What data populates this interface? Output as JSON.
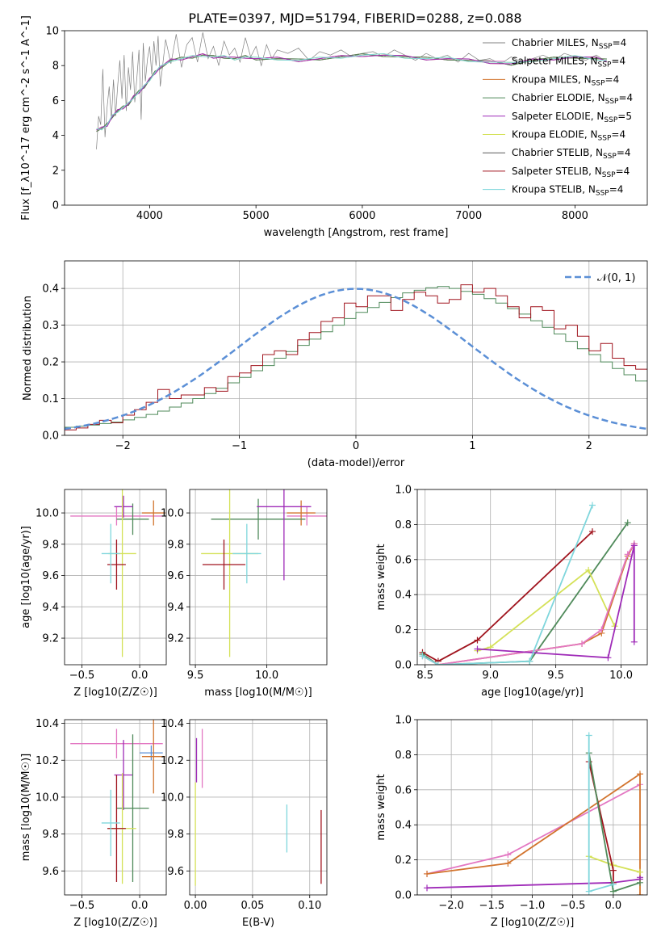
{
  "title": "PLATE=0397, MJD=51794, FIBERID=0288, z=0.088",
  "colors": {
    "chabrier_miles": "#808080",
    "salpeter_miles": "#e377c2",
    "kroupa_miles": "#d2742e",
    "chabrier_elodie": "#4f8a5a",
    "salpeter_elodie": "#9f2bb8",
    "kroupa_elodie": "#d4e157",
    "chabrier_stelib": "#5a5a5a",
    "salpeter_stelib": "#a0141e",
    "kroupa_stelib": "#7fd6dc",
    "normal_curve": "#5b8fd6"
  },
  "chart_data": [
    {
      "id": "spectrum",
      "type": "line",
      "xlabel": "wavelength [Angstrom, rest frame]",
      "ylabel": "Flux [f_λ10^-17 erg cm^-2 s^-1 A^-1]",
      "xlim": [
        3200,
        8680
      ],
      "ylim": [
        0,
        10
      ],
      "xticks": [
        4000,
        5000,
        6000,
        7000,
        8000
      ],
      "yticks": [
        0,
        2,
        4,
        6,
        8,
        10
      ],
      "grid": false,
      "legend_position": "right",
      "legend": [
        "Chabrier MILES, N_SSP=4",
        "Salpeter MILES, N_SSP=4",
        "Kroupa MILES, N_SSP=4",
        "Chabrier ELODIE, N_SSP=4",
        "Salpeter ELODIE, N_SSP=5",
        "Kroupa ELODIE, N_SSP=4",
        "Chabrier STELIB, N_SSP=4",
        "Salpeter STELIB, N_SSP=4",
        "Kroupa STELIB, N_SSP=4"
      ],
      "model_x": [
        3500,
        3550,
        3600,
        3650,
        3700,
        3750,
        3800,
        3850,
        3900,
        3950,
        4000,
        4050,
        4100,
        4200,
        4300,
        4400,
        4500,
        4600,
        4700,
        4800,
        4900,
        5000,
        5200,
        5400,
        5600,
        5800,
        6000,
        6200,
        6400,
        6600,
        6800,
        7000,
        7200,
        7400,
        7600,
        7800,
        8000,
        8200,
        8300
      ],
      "model_y": [
        4.3,
        4.4,
        4.6,
        5.1,
        5.4,
        5.6,
        5.8,
        6.2,
        6.5,
        6.8,
        7.2,
        7.6,
        7.9,
        8.3,
        8.4,
        8.5,
        8.6,
        8.5,
        8.5,
        8.4,
        8.5,
        8.4,
        8.4,
        8.3,
        8.4,
        8.5,
        8.6,
        8.6,
        8.5,
        8.4,
        8.4,
        8.3,
        8.2,
        8.1,
        8.3,
        8.4,
        8.5,
        8.4,
        8.3
      ],
      "data_x": [
        3500,
        3520,
        3540,
        3560,
        3580,
        3600,
        3620,
        3640,
        3660,
        3680,
        3700,
        3720,
        3740,
        3760,
        3780,
        3800,
        3820,
        3840,
        3860,
        3880,
        3900,
        3920,
        3940,
        3960,
        3980,
        4000,
        4020,
        4040,
        4060,
        4080,
        4100,
        4150,
        4200,
        4250,
        4300,
        4350,
        4400,
        4450,
        4500,
        4550,
        4600,
        4650,
        4700,
        4750,
        4800,
        4850,
        4900,
        4950,
        5000,
        5050,
        5100,
        5150,
        5200,
        5300,
        5400,
        5500,
        5600,
        5700,
        5800,
        5900,
        6000,
        6100,
        6200,
        6300,
        6400,
        6500,
        6600,
        6700,
        6800,
        6900,
        7000,
        7100,
        7200,
        7300,
        7400,
        7500,
        7600,
        7700,
        7800,
        7900,
        8000,
        8100,
        8200,
        8300
      ],
      "data_y": [
        3.2,
        5.1,
        4.6,
        7.8,
        3.9,
        5.6,
        6.8,
        4.9,
        7.2,
        5.1,
        6.9,
        8.3,
        6.1,
        8.6,
        5.4,
        7.9,
        6.6,
        8.8,
        5.9,
        7.3,
        8.9,
        4.9,
        9.3,
        7.1,
        8.4,
        9.1,
        7.5,
        9.4,
        8.0,
        9.7,
        6.8,
        9.5,
        8.1,
        9.8,
        7.9,
        9.2,
        9.6,
        8.2,
        9.9,
        8.4,
        9.1,
        8.0,
        9.4,
        8.6,
        9.0,
        8.2,
        9.6,
        8.5,
        9.1,
        8.0,
        9.2,
        8.4,
        8.9,
        8.7,
        9.0,
        8.3,
        8.8,
        8.6,
        8.9,
        8.5,
        8.7,
        8.8,
        8.5,
        8.9,
        8.6,
        8.3,
        8.7,
        8.4,
        8.6,
        8.2,
        8.7,
        8.3,
        8.4,
        8.1,
        8.5,
        8.2,
        8.4,
        8.6,
        8.3,
        8.7,
        8.5,
        8.3,
        8.6,
        8.2
      ]
    },
    {
      "id": "residuals",
      "type": "histogram",
      "xlabel": "(data-model)/error",
      "ylabel": "Normed distribution",
      "xlim": [
        -2.5,
        2.5
      ],
      "ylim": [
        0,
        0.475
      ],
      "xticks": [
        -2,
        -1,
        0,
        1,
        2
      ],
      "yticks": [
        0.0,
        0.1,
        0.2,
        0.3,
        0.4
      ],
      "grid": true,
      "legend_position": "top-right",
      "legend": [
        "𝒩(0, 1)"
      ],
      "bin_width": 0.1,
      "bin_start": -2.5,
      "series": [
        {
          "key": "chabrier_elodie",
          "values": [
            0.022,
            0.025,
            0.028,
            0.032,
            0.036,
            0.042,
            0.049,
            0.057,
            0.066,
            0.077,
            0.088,
            0.1,
            0.114,
            0.128,
            0.143,
            0.158,
            0.176,
            0.19,
            0.21,
            0.228,
            0.245,
            0.262,
            0.282,
            0.3,
            0.318,
            0.335,
            0.348,
            0.362,
            0.375,
            0.388,
            0.395,
            0.402,
            0.405,
            0.4,
            0.392,
            0.384,
            0.372,
            0.36,
            0.345,
            0.33,
            0.312,
            0.294,
            0.276,
            0.256,
            0.236,
            0.22,
            0.2,
            0.182,
            0.165,
            0.148
          ]
        },
        {
          "key": "salpeter_stelib",
          "values": [
            0.015,
            0.02,
            0.03,
            0.041,
            0.034,
            0.055,
            0.07,
            0.09,
            0.125,
            0.1,
            0.11,
            0.11,
            0.13,
            0.12,
            0.16,
            0.17,
            0.19,
            0.22,
            0.23,
            0.22,
            0.26,
            0.28,
            0.31,
            0.32,
            0.36,
            0.35,
            0.38,
            0.38,
            0.34,
            0.37,
            0.39,
            0.38,
            0.36,
            0.37,
            0.41,
            0.39,
            0.4,
            0.38,
            0.35,
            0.32,
            0.35,
            0.34,
            0.29,
            0.3,
            0.27,
            0.23,
            0.25,
            0.21,
            0.19,
            0.18
          ]
        }
      ],
      "normal_curve": {
        "mean": 0,
        "sigma": 1
      }
    },
    {
      "id": "age_vs_z",
      "type": "errorbar",
      "xlabel": "Z [log10(Z/Z☉)]",
      "ylabel": "age  [log10(age/yr)]",
      "xlim": [
        -0.65,
        0.23
      ],
      "ylim": [
        9.03,
        10.15
      ],
      "xticks": [
        -0.5,
        0.0
      ],
      "yticks": [
        9.2,
        9.4,
        9.6,
        9.8,
        10.0
      ],
      "grid": true,
      "points": [
        {
          "key": "salpeter_miles",
          "x": -0.2,
          "xerr": 0.4,
          "y": 9.98,
          "yerr": 0.06
        },
        {
          "key": "kroupa_miles",
          "x": 0.12,
          "xerr": 0.1,
          "y": 10.0,
          "yerr": 0.08
        },
        {
          "key": "chabrier_elodie",
          "x": -0.06,
          "xerr": 0.14,
          "y": 9.96,
          "yerr": 0.1
        },
        {
          "key": "salpeter_elodie",
          "x": -0.14,
          "xerr": 0.08,
          "y": 10.04,
          "yerr": 0.07
        },
        {
          "key": "kroupa_elodie",
          "x": -0.15,
          "xerr": 0.12,
          "y": 9.74,
          "yerr": 0.66
        },
        {
          "key": "salpeter_stelib",
          "x": -0.2,
          "xerr": 0.08,
          "y": 9.67,
          "yerr": 0.16
        },
        {
          "key": "kroupa_stelib",
          "x": -0.25,
          "xerr": 0.08,
          "y": 9.74,
          "yerr": 0.19
        }
      ]
    },
    {
      "id": "age_vs_mass",
      "type": "errorbar",
      "xlabel": "mass [log10(M/M☉)]",
      "ylabel": "",
      "xlim": [
        9.46,
        10.42
      ],
      "ylim": [
        9.03,
        10.15
      ],
      "xticks": [
        9.5,
        10.0
      ],
      "yticks": [
        9.2,
        9.4,
        9.6,
        9.8,
        10.0
      ],
      "grid": true,
      "points": [
        {
          "key": "salpeter_miles",
          "x": 10.28,
          "xerr": 0.14,
          "y": 9.98,
          "yerr": 0.06
        },
        {
          "key": "kroupa_miles",
          "x": 10.24,
          "xerr": 0.1,
          "y": 10.0,
          "yerr": 0.08
        },
        {
          "key": "chabrier_elodie",
          "x": 9.94,
          "xerr": 0.33,
          "y": 9.96,
          "yerr": 0.13
        },
        {
          "key": "salpeter_elodie",
          "x": 10.12,
          "xerr": 0.19,
          "y": 10.04,
          "yerr": 0.47
        },
        {
          "key": "kroupa_elodie",
          "x": 9.74,
          "xerr": 0.2,
          "y": 9.74,
          "yerr": 0.66
        },
        {
          "key": "salpeter_stelib",
          "x": 9.7,
          "xerr": 0.15,
          "y": 9.67,
          "yerr": 0.16
        },
        {
          "key": "kroupa_stelib",
          "x": 9.86,
          "xerr": 0.1,
          "y": 9.74,
          "yerr": 0.19
        }
      ]
    },
    {
      "id": "mass_weight_vs_age",
      "type": "line",
      "xlabel": "age  [log10(age/yr)]",
      "ylabel": "mass weight",
      "xlim": [
        8.44,
        10.2
      ],
      "ylim": [
        0,
        1.0
      ],
      "xticks": [
        8.5,
        9.0,
        9.5,
        10.0
      ],
      "yticks": [
        0.0,
        0.2,
        0.4,
        0.6,
        0.8,
        1.0
      ],
      "grid": true,
      "series": [
        {
          "key": "salpeter_stelib",
          "x": [
            8.48,
            8.6,
            8.9,
            9.78
          ],
          "y": [
            0.07,
            0.02,
            0.14,
            0.76
          ]
        },
        {
          "key": "chabrier_elodie",
          "x": [
            8.48,
            8.6,
            9.3,
            10.05
          ],
          "y": [
            0.06,
            0.0,
            0.02,
            0.81
          ]
        },
        {
          "key": "kroupa_elodie",
          "x": [
            8.9,
            9.0,
            9.75,
            9.95
          ],
          "y": [
            0.08,
            0.1,
            0.54,
            0.22
          ]
        },
        {
          "key": "kroupa_miles",
          "x": [
            8.48,
            8.6,
            9.7,
            9.85,
            10.05,
            10.1
          ],
          "y": [
            0.05,
            0.0,
            0.12,
            0.18,
            0.62,
            0.69
          ]
        },
        {
          "key": "salpeter_miles",
          "x": [
            8.48,
            8.6,
            9.7,
            9.85,
            10.05,
            10.1
          ],
          "y": [
            0.05,
            0.0,
            0.12,
            0.2,
            0.63,
            0.69
          ]
        },
        {
          "key": "salpeter_elodie",
          "x": [
            8.9,
            9.9,
            10.1,
            10.1
          ],
          "y": [
            0.09,
            0.04,
            0.68,
            0.13
          ]
        },
        {
          "key": "kroupa_stelib",
          "x": [
            8.48,
            8.6,
            9.3,
            9.78
          ],
          "y": [
            0.05,
            0.0,
            0.02,
            0.91
          ]
        }
      ]
    },
    {
      "id": "mass_vs_z",
      "type": "errorbar",
      "xlabel": "Z [log10(Z/Z☉)]",
      "ylabel": "mass [log10(M/M☉)]",
      "xlim": [
        -0.65,
        0.23
      ],
      "ylim": [
        9.47,
        10.42
      ],
      "xticks": [
        -0.5,
        0.0
      ],
      "yticks": [
        9.6,
        9.8,
        10.0,
        10.2,
        10.4
      ],
      "grid": true,
      "points": [
        {
          "key": "salpeter_miles",
          "x": -0.2,
          "xerr": 0.4,
          "y": 10.29,
          "yerr": 0.08
        },
        {
          "key": "normal_curve",
          "x": 0.1,
          "xerr": 0.1,
          "y": 10.24,
          "yerr": 0.04
        },
        {
          "key": "kroupa_miles",
          "x": 0.12,
          "xerr": 0.1,
          "y": 10.22,
          "yerr": 0.2
        },
        {
          "key": "salpeter_elodie",
          "x": -0.14,
          "xerr": 0.08,
          "y": 10.12,
          "yerr": 0.19
        },
        {
          "key": "chabrier_elodie",
          "x": -0.06,
          "xerr": 0.14,
          "y": 9.94,
          "yerr": 0.4
        },
        {
          "key": "kroupa_elodie",
          "x": -0.15,
          "xerr": 0.12,
          "y": 9.83,
          "yerr": 0.3
        },
        {
          "key": "salpeter_stelib",
          "x": -0.2,
          "xerr": 0.08,
          "y": 9.83,
          "yerr": 0.29
        },
        {
          "key": "kroupa_stelib",
          "x": -0.25,
          "xerr": 0.08,
          "y": 9.86,
          "yerr": 0.18
        }
      ]
    },
    {
      "id": "mass_vs_ebv",
      "type": "errorbar",
      "xlabel": "E(B-V)",
      "ylabel": "",
      "xlim": [
        -0.005,
        0.115
      ],
      "ylim": [
        9.47,
        10.42
      ],
      "xticks": [
        0.0,
        0.05,
        0.1
      ],
      "yticks": [
        9.6,
        9.8,
        10.0,
        10.2,
        10.4
      ],
      "grid": true,
      "points": [
        {
          "key": "salpeter_miles",
          "x": 0.006,
          "xerr": 0,
          "y": 10.21,
          "yerr": 0.16
        },
        {
          "key": "salpeter_elodie",
          "x": 0.001,
          "xerr": 0,
          "y": 10.2,
          "yerr": 0.12
        },
        {
          "key": "kroupa_elodie",
          "x": 0.0,
          "xerr": 0,
          "y": 9.8,
          "yerr": 0.28
        },
        {
          "key": "kroupa_stelib",
          "x": 0.08,
          "xerr": 0,
          "y": 9.83,
          "yerr": 0.13
        },
        {
          "key": "salpeter_stelib",
          "x": 0.11,
          "xerr": 0,
          "y": 9.73,
          "yerr": 0.2
        }
      ]
    },
    {
      "id": "mass_weight_vs_z",
      "type": "line",
      "xlabel": "Z [log10(Z/Z☉)]",
      "ylabel": "mass weight",
      "xlim": [
        -2.42,
        0.42
      ],
      "ylim": [
        0,
        1.0
      ],
      "xticks": [
        -2.0,
        -1.5,
        -1.0,
        -0.5,
        0.0
      ],
      "yticks": [
        0.0,
        0.2,
        0.4,
        0.6,
        0.8,
        1.0
      ],
      "grid": true,
      "series": [
        {
          "key": "salpeter_miles",
          "x": [
            -2.3,
            -1.3,
            0.33
          ],
          "y": [
            0.12,
            0.23,
            0.63
          ]
        },
        {
          "key": "kroupa_miles",
          "x": [
            -2.3,
            -1.3,
            0.33,
            0.33
          ],
          "y": [
            0.12,
            0.18,
            0.69,
            0.0
          ]
        },
        {
          "key": "salpeter_elodie",
          "x": [
            -2.3,
            0.0,
            0.33,
            0.33
          ],
          "y": [
            0.04,
            0.07,
            0.09,
            0.1
          ]
        },
        {
          "key": "kroupa_elodie",
          "x": [
            -0.3,
            0.0,
            0.33
          ],
          "y": [
            0.22,
            0.17,
            0.13
          ]
        },
        {
          "key": "salpeter_stelib",
          "x": [
            -0.3,
            0.0,
            0.0
          ],
          "y": [
            0.76,
            0.14,
            0.07
          ]
        },
        {
          "key": "chabrier_elodie",
          "x": [
            -0.3,
            0.0,
            0.33
          ],
          "y": [
            0.81,
            0.02,
            0.07
          ]
        },
        {
          "key": "kroupa_stelib",
          "x": [
            -0.3,
            -0.3,
            0.0
          ],
          "y": [
            0.91,
            0.02,
            0.06
          ]
        }
      ]
    }
  ]
}
